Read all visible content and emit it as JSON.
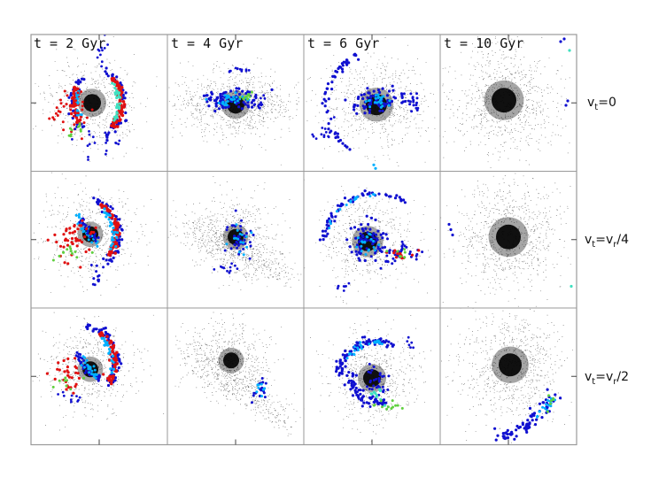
{
  "figure": {
    "time_labels": [
      "t = 2 Gyr",
      "t = 4 Gyr",
      "t = 6 Gyr",
      "t = 10 Gyr"
    ],
    "rows": [
      {
        "v": "v",
        "sub": "t",
        "expr": "=0"
      },
      {
        "v": "v",
        "sub": "t",
        "expr": "=v",
        "sub2": "r",
        "tail": "/4"
      },
      {
        "v": "v",
        "sub": "t",
        "expr": "=v",
        "sub2": "r",
        "tail": "/2"
      }
    ],
    "colors": {
      "background": "#ffffff",
      "frame": "#999999",
      "dark_matter": "#000000",
      "low_density": "#1010d0",
      "mid_low": "#00b0ff",
      "mid": "#40e0c0",
      "mid_high": "#60d040",
      "high_density": "#e01010"
    }
  }
}
